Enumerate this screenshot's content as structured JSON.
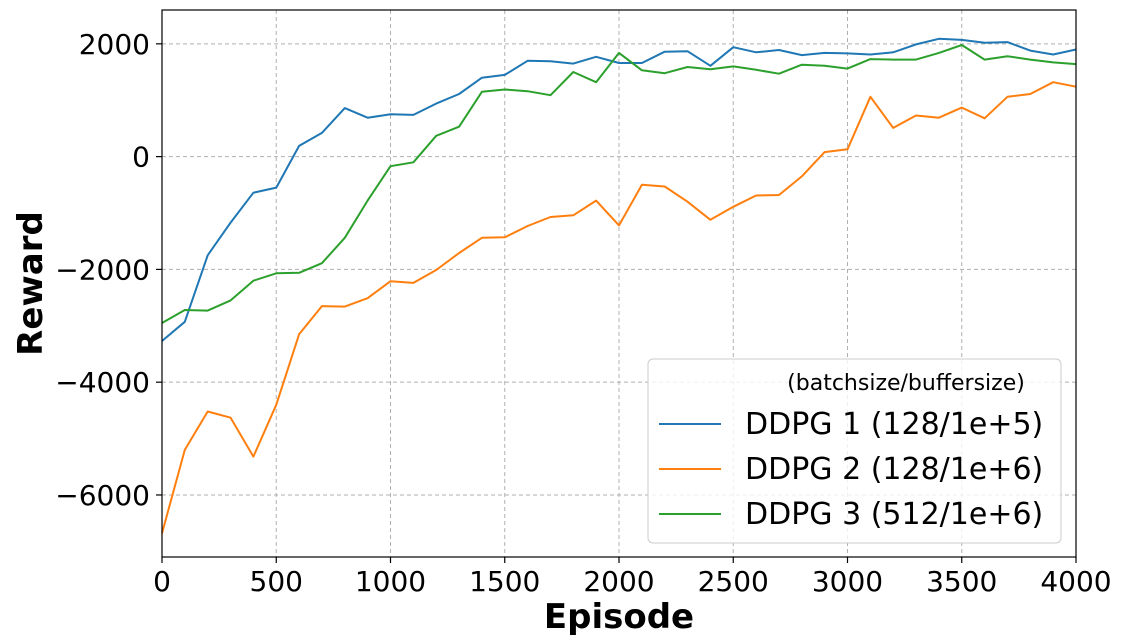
{
  "chart_data": {
    "type": "line",
    "xlabel": "Episode",
    "ylabel": "Reward",
    "xlim": [
      0,
      4000
    ],
    "ylim": [
      -7100,
      2600
    ],
    "xticks": [
      0,
      500,
      1000,
      1500,
      2000,
      2500,
      3000,
      3500,
      4000
    ],
    "xtick_labels": [
      "0",
      "500",
      "1000",
      "1500",
      "2000",
      "2500",
      "3000",
      "3500",
      "4000"
    ],
    "yticks": [
      2000,
      0,
      -2000,
      -4000,
      -6000
    ],
    "ytick_labels": [
      "2000",
      "0",
      "−2000",
      "−4000",
      "−6000"
    ],
    "grid": true,
    "legend_title": "(batchsize/buffersize)",
    "legend_position": "lower-right",
    "x": [
      0,
      100,
      200,
      300,
      400,
      500,
      600,
      700,
      800,
      900,
      1000,
      1100,
      1200,
      1300,
      1400,
      1500,
      1600,
      1700,
      1800,
      1900,
      2000,
      2100,
      2200,
      2300,
      2400,
      2500,
      2600,
      2700,
      2800,
      2900,
      3000,
      3100,
      3200,
      3300,
      3400,
      3500,
      3600,
      3700,
      3800,
      3900,
      4000
    ],
    "series": [
      {
        "name": "DDPG 1 (128/1e+5)",
        "color": "#1f77b4",
        "values": [
          -3270,
          -2930,
          -1750,
          -1170,
          -640,
          -550,
          190,
          420,
          860,
          690,
          750,
          740,
          940,
          1110,
          1400,
          1450,
          1700,
          1690,
          1650,
          1770,
          1660,
          1660,
          1860,
          1870,
          1610,
          1940,
          1850,
          1890,
          1800,
          1840,
          1830,
          1810,
          1850,
          1990,
          2090,
          2070,
          2020,
          2030,
          1880,
          1810,
          1900
        ]
      },
      {
        "name": "DDPG 2 (128/1e+6)",
        "color": "#ff7f0e",
        "values": [
          -6680,
          -5200,
          -4520,
          -4630,
          -5320,
          -4400,
          -3150,
          -2650,
          -2660,
          -2510,
          -2210,
          -2240,
          -2010,
          -1710,
          -1440,
          -1430,
          -1230,
          -1070,
          -1040,
          -780,
          -1220,
          -500,
          -530,
          -800,
          -1120,
          -890,
          -690,
          -680,
          -350,
          80,
          130,
          1060,
          510,
          730,
          690,
          870,
          680,
          1060,
          1110,
          1320,
          1240
        ]
      },
      {
        "name": "DDPG 3 (512/1e+6)",
        "color": "#2ca02c",
        "values": [
          -2950,
          -2720,
          -2730,
          -2550,
          -2200,
          -2070,
          -2060,
          -1890,
          -1440,
          -780,
          -170,
          -100,
          370,
          530,
          1150,
          1190,
          1160,
          1090,
          1500,
          1320,
          1840,
          1530,
          1480,
          1590,
          1550,
          1600,
          1540,
          1470,
          1630,
          1610,
          1560,
          1730,
          1720,
          1720,
          1840,
          1980,
          1720,
          1780,
          1720,
          1670,
          1640
        ]
      }
    ]
  }
}
